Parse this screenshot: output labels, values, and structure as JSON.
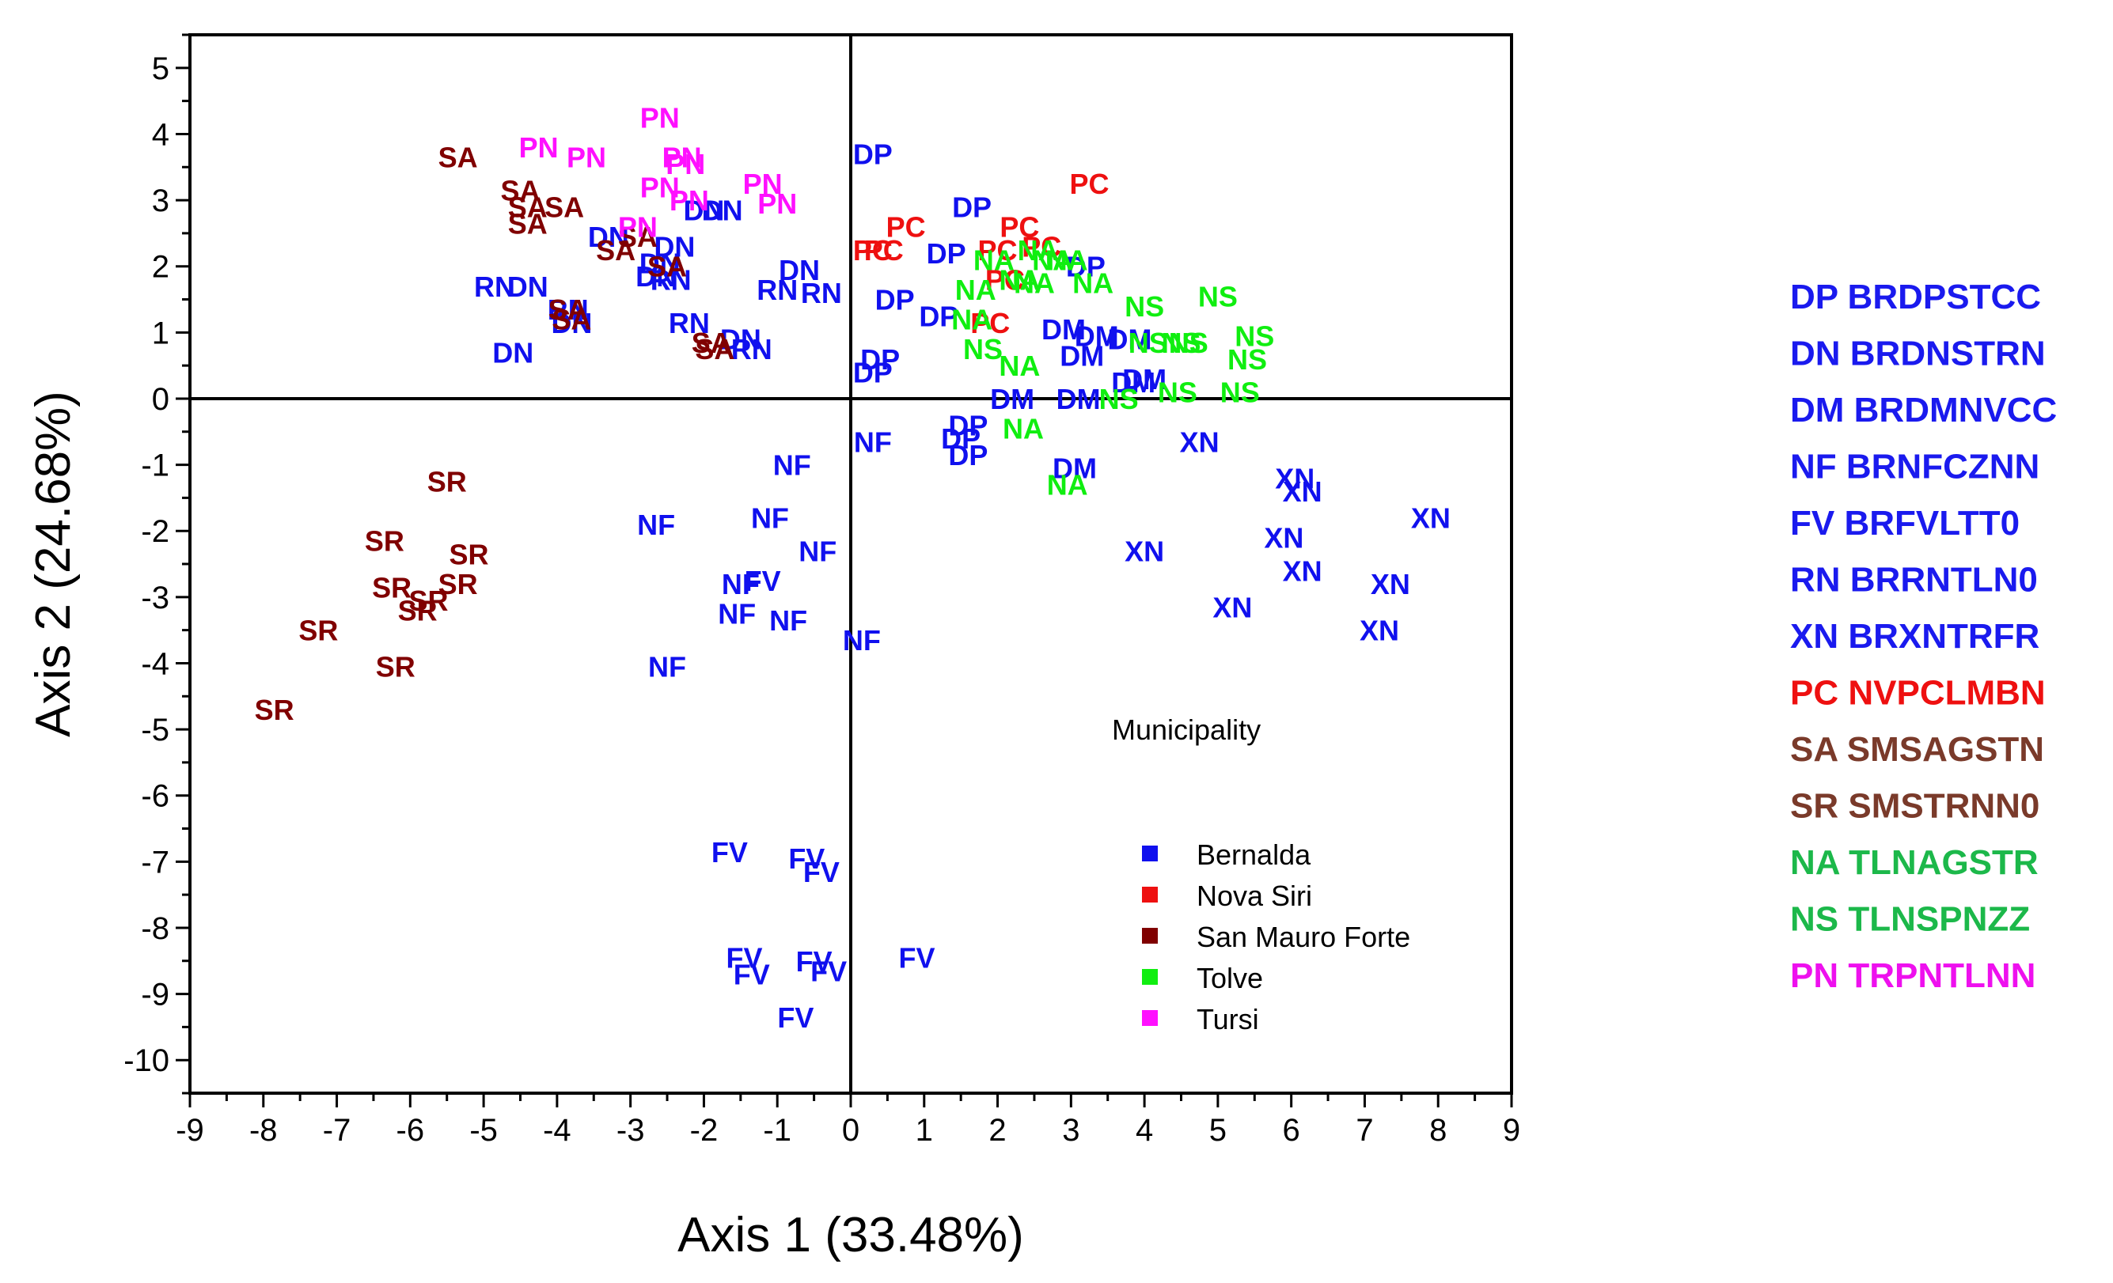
{
  "chart_data": {
    "type": "scatter",
    "xlabel": "Axis 1 (33.48%)",
    "ylabel": "Axis 2 (24.68%)",
    "xlim": [
      -9,
      9
    ],
    "ylim": [
      -10.5,
      5.5
    ],
    "xticks": [
      -9,
      -8,
      -7,
      -6,
      -5,
      -4,
      -3,
      -2,
      -1,
      0,
      1,
      2,
      3,
      4,
      5,
      6,
      7,
      8,
      9
    ],
    "yticks": [
      5,
      4,
      3,
      2,
      1,
      0,
      -1,
      -2,
      -3,
      -4,
      -5,
      -6,
      -7,
      -8,
      -9,
      -10
    ],
    "grid": false,
    "reference_lines": {
      "x": 0,
      "y": 0
    },
    "legend": {
      "title": "Municipality",
      "items": [
        {
          "name": "Bernalda",
          "color": "#1010ee"
        },
        {
          "name": "Nova Siri",
          "color": "#ee1010"
        },
        {
          "name": "San Mauro Forte",
          "color": "#800000"
        },
        {
          "name": "Tolve",
          "color": "#10ee10"
        },
        {
          "name": "Tursi",
          "color": "#ff10ff"
        }
      ]
    },
    "series": [
      {
        "name": "Bernalda",
        "color": "#1010ee",
        "points": [
          {
            "label": "DP",
            "x": 0.3,
            "y": 3.7
          },
          {
            "label": "DP",
            "x": 1.65,
            "y": 2.9
          },
          {
            "label": "DP",
            "x": 1.3,
            "y": 2.2
          },
          {
            "label": "DP",
            "x": 3.2,
            "y": 2.0
          },
          {
            "label": "DP",
            "x": 0.6,
            "y": 1.5
          },
          {
            "label": "DP",
            "x": 1.2,
            "y": 1.25
          },
          {
            "label": "DP",
            "x": 0.4,
            "y": 0.6
          },
          {
            "label": "DP",
            "x": 0.3,
            "y": 0.4
          },
          {
            "label": "DP",
            "x": 1.6,
            "y": -0.4
          },
          {
            "label": "DP",
            "x": 1.5,
            "y": -0.6
          },
          {
            "label": "DP",
            "x": 1.6,
            "y": -0.85
          },
          {
            "label": "DN",
            "x": -3.3,
            "y": 2.45
          },
          {
            "label": "DN",
            "x": -2.4,
            "y": 2.3
          },
          {
            "label": "DN",
            "x": -2.0,
            "y": 2.85
          },
          {
            "label": "DN",
            "x": -1.75,
            "y": 2.85
          },
          {
            "label": "DN",
            "x": -2.65,
            "y": 1.85
          },
          {
            "label": "DN",
            "x": -0.7,
            "y": 1.95
          },
          {
            "label": "DN",
            "x": -4.4,
            "y": 1.7
          },
          {
            "label": "DN",
            "x": -3.8,
            "y": 1.15
          },
          {
            "label": "DN",
            "x": -4.6,
            "y": 0.7
          },
          {
            "label": "DN",
            "x": -1.5,
            "y": 0.9
          },
          {
            "label": "DN",
            "x": -2.6,
            "y": 2.05
          },
          {
            "label": "DM",
            "x": 2.9,
            "y": 1.05
          },
          {
            "label": "DM",
            "x": 3.35,
            "y": 0.95
          },
          {
            "label": "DM",
            "x": 3.8,
            "y": 0.9
          },
          {
            "label": "DM",
            "x": 3.15,
            "y": 0.65
          },
          {
            "label": "DM",
            "x": 2.2,
            "y": 0.0
          },
          {
            "label": "DM",
            "x": 3.85,
            "y": 0.25
          },
          {
            "label": "DM",
            "x": 4.0,
            "y": 0.3
          },
          {
            "label": "DM",
            "x": 3.1,
            "y": 0.0
          },
          {
            "label": "DM",
            "x": 3.05,
            "y": -1.05
          },
          {
            "label": "NF",
            "x": 0.3,
            "y": -0.65
          },
          {
            "label": "NF",
            "x": -0.8,
            "y": -1.0
          },
          {
            "label": "NF",
            "x": -1.1,
            "y": -1.8
          },
          {
            "label": "NF",
            "x": -2.65,
            "y": -1.9
          },
          {
            "label": "NF",
            "x": -0.45,
            "y": -2.3
          },
          {
            "label": "NF",
            "x": -1.5,
            "y": -2.8
          },
          {
            "label": "NF",
            "x": -1.55,
            "y": -3.25
          },
          {
            "label": "NF",
            "x": -0.85,
            "y": -3.35
          },
          {
            "label": "NF",
            "x": 0.15,
            "y": -3.65
          },
          {
            "label": "NF",
            "x": -2.5,
            "y": -4.05
          },
          {
            "label": "FV",
            "x": -1.65,
            "y": -6.85
          },
          {
            "label": "FV",
            "x": -0.6,
            "y": -6.95
          },
          {
            "label": "FV",
            "x": -0.4,
            "y": -7.15
          },
          {
            "label": "FV",
            "x": -1.45,
            "y": -8.45
          },
          {
            "label": "FV",
            "x": -1.35,
            "y": -8.7
          },
          {
            "label": "FV",
            "x": -0.5,
            "y": -8.5
          },
          {
            "label": "FV",
            "x": -0.3,
            "y": -8.65
          },
          {
            "label": "FV",
            "x": 0.9,
            "y": -8.45
          },
          {
            "label": "FV",
            "x": -0.75,
            "y": -9.35
          },
          {
            "label": "FV",
            "x": -1.2,
            "y": -2.75
          },
          {
            "label": "RN",
            "x": -4.85,
            "y": 1.7
          },
          {
            "label": "RN",
            "x": -3.85,
            "y": 1.35
          },
          {
            "label": "RN",
            "x": -2.45,
            "y": 1.8
          },
          {
            "label": "RN",
            "x": -1.0,
            "y": 1.65
          },
          {
            "label": "RN",
            "x": -0.4,
            "y": 1.6
          },
          {
            "label": "RN",
            "x": -2.2,
            "y": 1.15
          },
          {
            "label": "RN",
            "x": -1.35,
            "y": 0.75
          },
          {
            "label": "XN",
            "x": 4.75,
            "y": -0.65
          },
          {
            "label": "XN",
            "x": 6.05,
            "y": -1.2
          },
          {
            "label": "XN",
            "x": 6.15,
            "y": -1.4
          },
          {
            "label": "XN",
            "x": 7.9,
            "y": -1.8
          },
          {
            "label": "XN",
            "x": 5.9,
            "y": -2.1
          },
          {
            "label": "XN",
            "x": 4.0,
            "y": -2.3
          },
          {
            "label": "XN",
            "x": 6.15,
            "y": -2.6
          },
          {
            "label": "XN",
            "x": 7.35,
            "y": -2.8
          },
          {
            "label": "XN",
            "x": 5.2,
            "y": -3.15
          },
          {
            "label": "XN",
            "x": 7.2,
            "y": -3.5
          }
        ]
      },
      {
        "name": "Nova Siri",
        "color": "#ee1010",
        "points": [
          {
            "label": "PC",
            "x": 3.25,
            "y": 3.25
          },
          {
            "label": "PC",
            "x": 0.75,
            "y": 2.6
          },
          {
            "label": "PC",
            "x": 2.3,
            "y": 2.6
          },
          {
            "label": "PC",
            "x": 0.3,
            "y": 2.25
          },
          {
            "label": "PC",
            "x": 0.45,
            "y": 2.25
          },
          {
            "label": "PC",
            "x": 2.0,
            "y": 2.25
          },
          {
            "label": "PC",
            "x": 2.6,
            "y": 2.3
          },
          {
            "label": "PC",
            "x": 2.1,
            "y": 1.8
          },
          {
            "label": "PC",
            "x": 1.9,
            "y": 1.15
          }
        ]
      },
      {
        "name": "San Mauro Forte",
        "color": "#800000",
        "points": [
          {
            "label": "SA",
            "x": -5.35,
            "y": 3.65
          },
          {
            "label": "SA",
            "x": -4.5,
            "y": 3.15
          },
          {
            "label": "SA",
            "x": -4.4,
            "y": 2.9
          },
          {
            "label": "SA",
            "x": -3.9,
            "y": 2.9
          },
          {
            "label": "SA",
            "x": -4.4,
            "y": 2.65
          },
          {
            "label": "SA",
            "x": -2.9,
            "y": 2.45
          },
          {
            "label": "SA",
            "x": -3.2,
            "y": 2.25
          },
          {
            "label": "SA",
            "x": -2.5,
            "y": 2.0
          },
          {
            "label": "SA",
            "x": -3.85,
            "y": 1.35
          },
          {
            "label": "SA",
            "x": -3.8,
            "y": 1.2
          },
          {
            "label": "SA",
            "x": -1.9,
            "y": 0.85
          },
          {
            "label": "SA",
            "x": -1.85,
            "y": 0.75
          },
          {
            "label": "SR",
            "x": -5.5,
            "y": -1.25
          },
          {
            "label": "SR",
            "x": -6.35,
            "y": -2.15
          },
          {
            "label": "SR",
            "x": -5.2,
            "y": -2.35
          },
          {
            "label": "SR",
            "x": -5.35,
            "y": -2.8
          },
          {
            "label": "SR",
            "x": -6.25,
            "y": -2.85
          },
          {
            "label": "SR",
            "x": -5.75,
            "y": -3.05
          },
          {
            "label": "SR",
            "x": -5.9,
            "y": -3.2
          },
          {
            "label": "SR",
            "x": -7.25,
            "y": -3.5
          },
          {
            "label": "SR",
            "x": -6.2,
            "y": -4.05
          },
          {
            "label": "SR",
            "x": -7.85,
            "y": -4.7
          }
        ]
      },
      {
        "name": "Tolve",
        "color": "#10ee10",
        "points": [
          {
            "label": "NA",
            "x": 1.95,
            "y": 2.1
          },
          {
            "label": "NA",
            "x": 2.55,
            "y": 2.25
          },
          {
            "label": "NA",
            "x": 2.75,
            "y": 2.1
          },
          {
            "label": "NA",
            "x": 2.95,
            "y": 2.1
          },
          {
            "label": "NA",
            "x": 2.3,
            "y": 1.8
          },
          {
            "label": "NA",
            "x": 2.5,
            "y": 1.75
          },
          {
            "label": "NA",
            "x": 3.3,
            "y": 1.75
          },
          {
            "label": "NA",
            "x": 1.7,
            "y": 1.65
          },
          {
            "label": "NA",
            "x": 1.65,
            "y": 1.2
          },
          {
            "label": "NA",
            "x": 2.3,
            "y": 0.5
          },
          {
            "label": "NA",
            "x": 2.35,
            "y": -0.45
          },
          {
            "label": "NA",
            "x": 2.95,
            "y": -1.3
          },
          {
            "label": "NS",
            "x": 4.0,
            "y": 1.4
          },
          {
            "label": "NS",
            "x": 5.0,
            "y": 1.55
          },
          {
            "label": "NS",
            "x": 4.05,
            "y": 0.85
          },
          {
            "label": "NS",
            "x": 4.6,
            "y": 0.85
          },
          {
            "label": "NS",
            "x": 5.5,
            "y": 0.95
          },
          {
            "label": "NS",
            "x": 5.4,
            "y": 0.6
          },
          {
            "label": "NS",
            "x": 1.8,
            "y": 0.75
          },
          {
            "label": "NS",
            "x": 3.65,
            "y": 0.0
          },
          {
            "label": "NS",
            "x": 4.45,
            "y": 0.1
          },
          {
            "label": "NS",
            "x": 5.3,
            "y": 0.1
          },
          {
            "label": "NS",
            "x": 4.5,
            "y": 0.85
          }
        ]
      },
      {
        "name": "Tursi",
        "color": "#ff10ff",
        "points": [
          {
            "label": "PN",
            "x": -2.6,
            "y": 4.25
          },
          {
            "label": "PN",
            "x": -4.25,
            "y": 3.8
          },
          {
            "label": "PN",
            "x": -3.6,
            "y": 3.65
          },
          {
            "label": "PN",
            "x": -2.3,
            "y": 3.65
          },
          {
            "label": "PN",
            "x": -2.25,
            "y": 3.55
          },
          {
            "label": "PN",
            "x": -2.6,
            "y": 3.2
          },
          {
            "label": "PN",
            "x": -1.2,
            "y": 3.25
          },
          {
            "label": "PN",
            "x": -2.2,
            "y": 3.0
          },
          {
            "label": "PN",
            "x": -1.0,
            "y": 2.95
          },
          {
            "label": "PN",
            "x": -2.9,
            "y": 2.6
          }
        ]
      }
    ]
  },
  "codes": [
    {
      "text": "DP BRDPSTCC",
      "color": "#1a1aee"
    },
    {
      "text": "DN BRDNSTRN",
      "color": "#1a1aee"
    },
    {
      "text": "DM BRDMNVCC",
      "color": "#1a1aee"
    },
    {
      "text": "NF BRNFCZNN",
      "color": "#1a1aee"
    },
    {
      "text": "FV BRFVLTT0",
      "color": "#1a1aee"
    },
    {
      "text": "RN BRRNTLN0",
      "color": "#1a1aee"
    },
    {
      "text": "XN BRXNTRFR",
      "color": "#1a1aee"
    },
    {
      "text": "PC NVPCLMBN",
      "color": "#ee1010"
    },
    {
      "text": "SA SMSAGSTN",
      "color": "#7a3a2a"
    },
    {
      "text": "SR SMSTRNN0",
      "color": "#7a3a2a"
    },
    {
      "text": "NA TLNAGSTR",
      "color": "#1cb84a"
    },
    {
      "text": "NS TLNSPNZZ",
      "color": "#1cb84a"
    },
    {
      "text": "PN TRPNTLNN",
      "color": "#ee10ee"
    }
  ]
}
